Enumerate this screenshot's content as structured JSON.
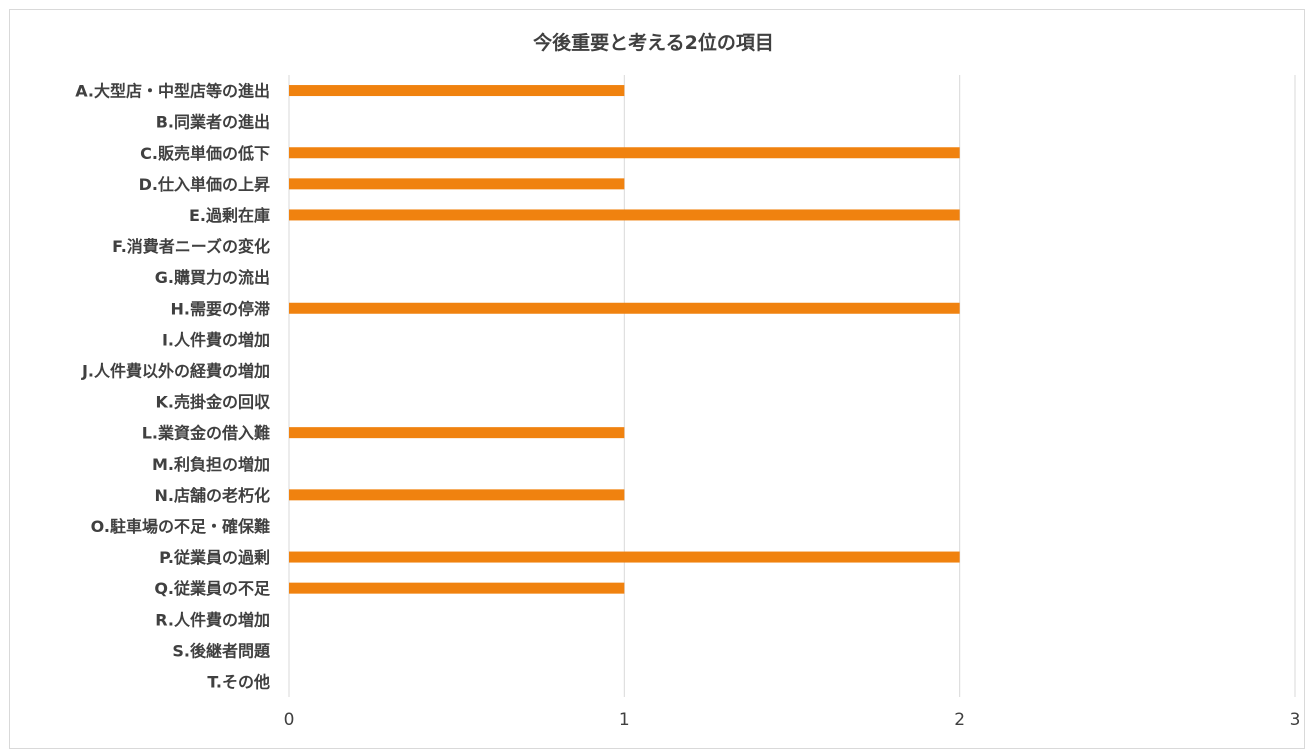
{
  "chart_data": {
    "type": "bar",
    "orientation": "horizontal",
    "title": "今後重要と考える2位の項目",
    "xlabel": "",
    "ylabel": "",
    "categories": [
      "A.大型店・中型店等の進出",
      "B.同業者の進出",
      "C.販売単価の低下",
      "D.仕入単価の上昇",
      "E.過剰在庫",
      "F.消費者ニーズの変化",
      "G.購買力の流出",
      "H.需要の停滞",
      "I.人件費の増加",
      "J.人件費以外の経費の増加",
      "K.売掛金の回収",
      "L.業資金の借入難",
      "M.利負担の増加",
      "N.店舗の老朽化",
      "O.駐車場の不足・確保難",
      "P.従業員の過剰",
      "Q.従業員の不足",
      "R.人件費の増加",
      "S.後継者問題",
      "T.その他"
    ],
    "values": [
      1,
      0,
      2,
      1,
      2,
      0,
      0,
      2,
      0,
      0,
      0,
      1,
      0,
      1,
      0,
      2,
      1,
      0,
      0,
      0
    ],
    "xlim": [
      0,
      3
    ],
    "xticks": [
      "0",
      "1",
      "2",
      "3"
    ],
    "grid": true,
    "legend": "none",
    "bar_color": "#F0820F",
    "grid_color": "#D9D9D9"
  }
}
